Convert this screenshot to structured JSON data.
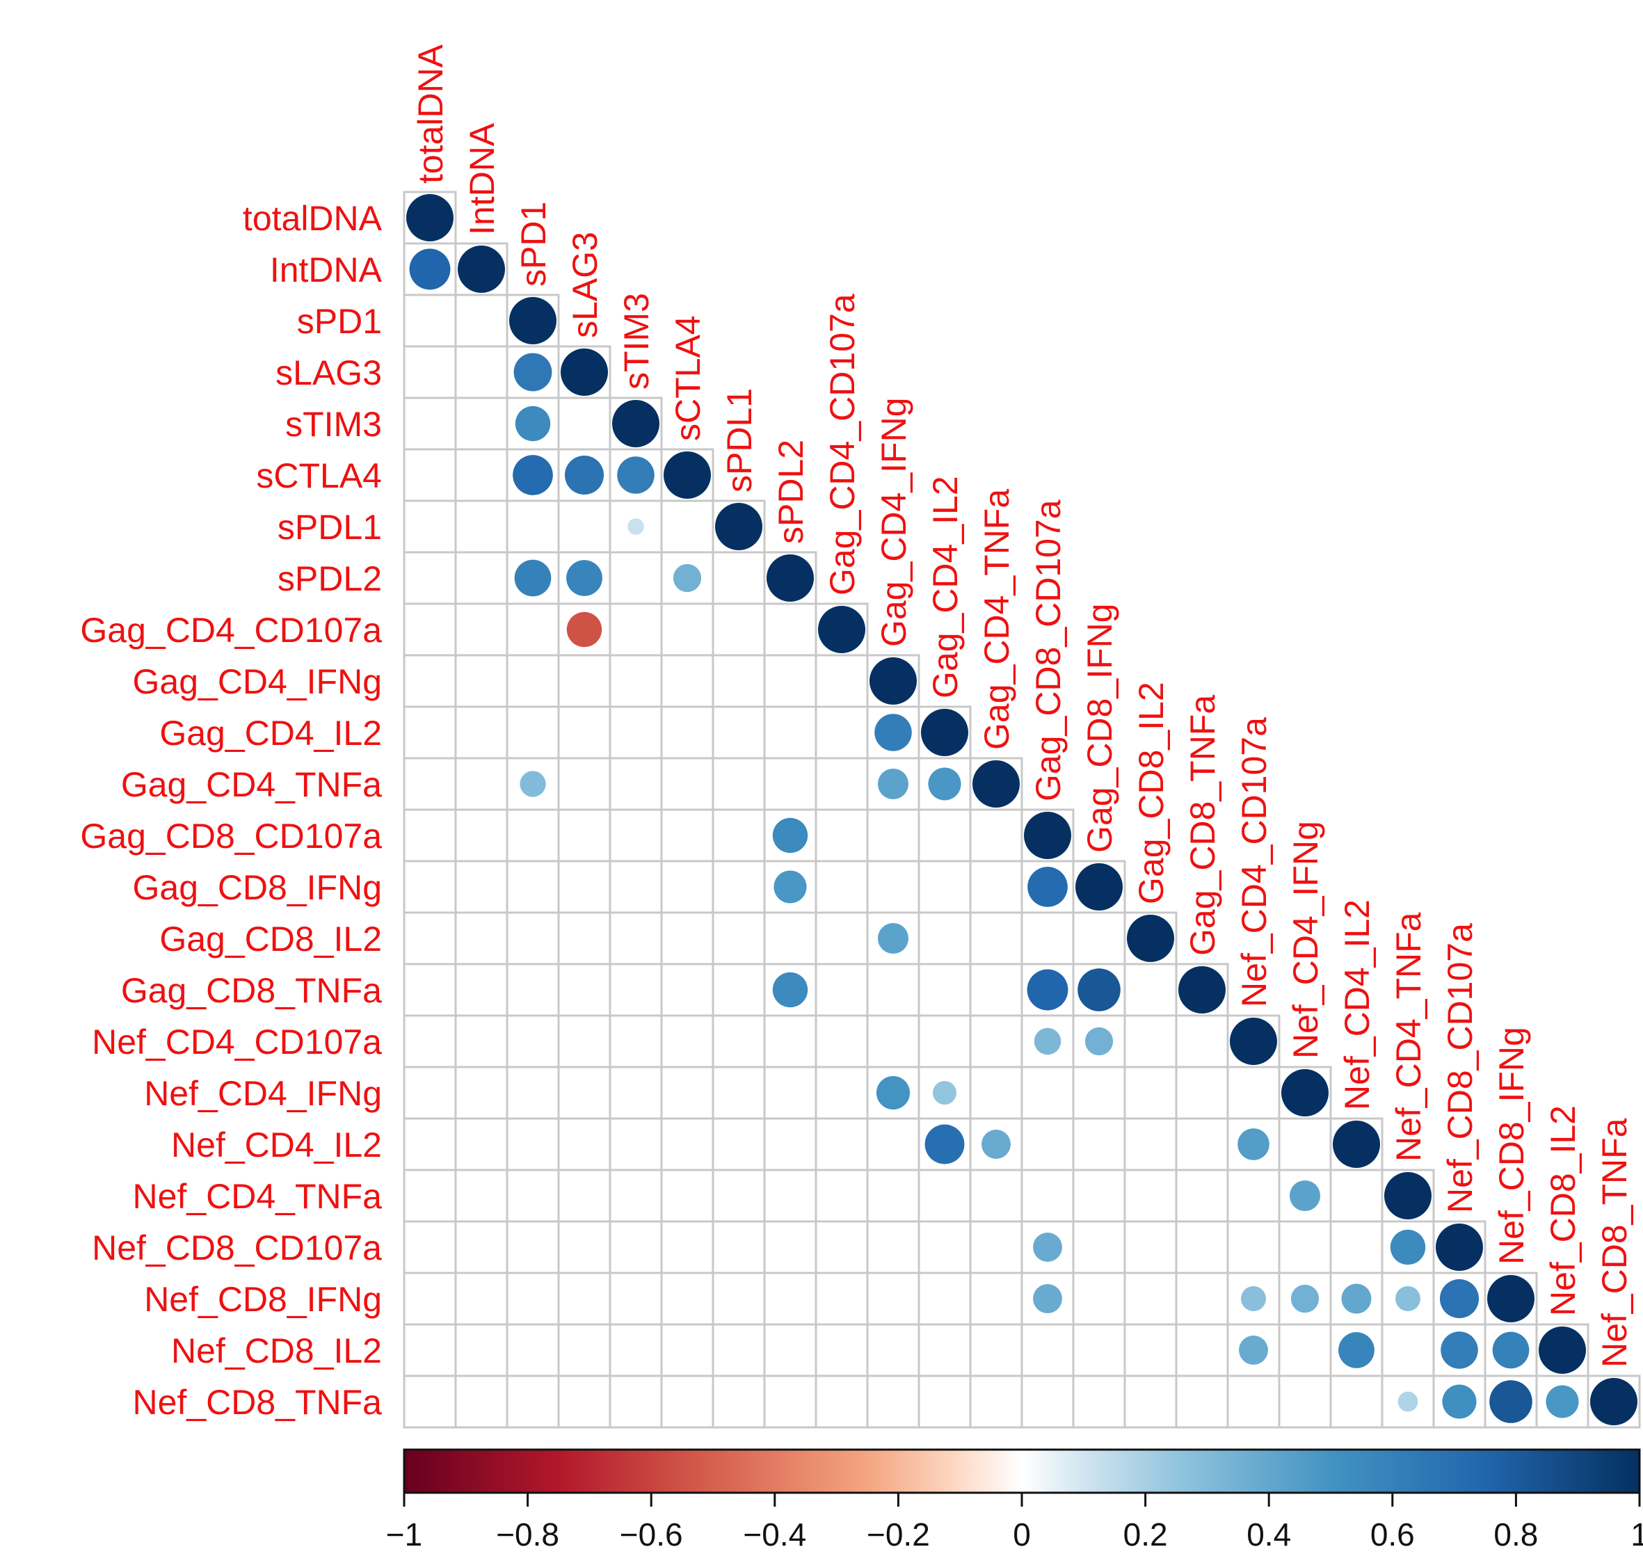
{
  "colors": {
    "label": "#ee1111",
    "grid": "#c8c8c8",
    "tick_text": "#111111"
  },
  "chart_data": {
    "type": "heatmap",
    "subtype": "correlation-matrix-lower-triangle-circles",
    "variables": [
      "totalDNA",
      "IntDNA",
      "sPD1",
      "sLAG3",
      "sTIM3",
      "sCTLA4",
      "sPDL1",
      "sPDL2",
      "Gag_CD4_CD107a",
      "Gag_CD4_IFNg",
      "Gag_CD4_IL2",
      "Gag_CD4_TNFa",
      "Gag_CD8_CD107a",
      "Gag_CD8_IFNg",
      "Gag_CD8_IL2",
      "Gag_CD8_TNFa",
      "Nef_CD4_CD107a",
      "Nef_CD4_IFNg",
      "Nef_CD4_IL2",
      "Nef_CD4_TNFa",
      "Nef_CD8_CD107a",
      "Nef_CD8_IFNg",
      "Nef_CD8_IL2",
      "Nef_CD8_TNFa"
    ],
    "correlations": [
      {
        "row": 1,
        "col": 0,
        "r": 0.75
      },
      {
        "row": 3,
        "col": 2,
        "r": 0.65
      },
      {
        "row": 4,
        "col": 2,
        "r": 0.55
      },
      {
        "row": 5,
        "col": 2,
        "r": 0.72
      },
      {
        "row": 5,
        "col": 3,
        "r": 0.68
      },
      {
        "row": 5,
        "col": 4,
        "r": 0.62
      },
      {
        "row": 6,
        "col": 4,
        "r": 0.12
      },
      {
        "row": 7,
        "col": 2,
        "r": 0.6
      },
      {
        "row": 7,
        "col": 3,
        "r": 0.58
      },
      {
        "row": 7,
        "col": 5,
        "r": 0.35
      },
      {
        "row": 8,
        "col": 3,
        "r": -0.55
      },
      {
        "row": 10,
        "col": 9,
        "r": 0.62
      },
      {
        "row": 11,
        "col": 2,
        "r": 0.3
      },
      {
        "row": 11,
        "col": 9,
        "r": 0.42
      },
      {
        "row": 11,
        "col": 10,
        "r": 0.48
      },
      {
        "row": 12,
        "col": 7,
        "r": 0.55
      },
      {
        "row": 13,
        "col": 7,
        "r": 0.48
      },
      {
        "row": 13,
        "col": 12,
        "r": 0.72
      },
      {
        "row": 14,
        "col": 9,
        "r": 0.42
      },
      {
        "row": 15,
        "col": 7,
        "r": 0.55
      },
      {
        "row": 15,
        "col": 12,
        "r": 0.75
      },
      {
        "row": 15,
        "col": 13,
        "r": 0.82
      },
      {
        "row": 16,
        "col": 12,
        "r": 0.32
      },
      {
        "row": 16,
        "col": 13,
        "r": 0.35
      },
      {
        "row": 17,
        "col": 9,
        "r": 0.5
      },
      {
        "row": 17,
        "col": 10,
        "r": 0.25
      },
      {
        "row": 18,
        "col": 10,
        "r": 0.7
      },
      {
        "row": 18,
        "col": 11,
        "r": 0.38
      },
      {
        "row": 18,
        "col": 16,
        "r": 0.45
      },
      {
        "row": 19,
        "col": 17,
        "r": 0.42
      },
      {
        "row": 20,
        "col": 12,
        "r": 0.38
      },
      {
        "row": 20,
        "col": 19,
        "r": 0.55
      },
      {
        "row": 21,
        "col": 12,
        "r": 0.38
      },
      {
        "row": 21,
        "col": 16,
        "r": 0.28
      },
      {
        "row": 21,
        "col": 17,
        "r": 0.35
      },
      {
        "row": 21,
        "col": 18,
        "r": 0.4
      },
      {
        "row": 21,
        "col": 19,
        "r": 0.28
      },
      {
        "row": 21,
        "col": 20,
        "r": 0.68
      },
      {
        "row": 22,
        "col": 16,
        "r": 0.38
      },
      {
        "row": 22,
        "col": 18,
        "r": 0.58
      },
      {
        "row": 22,
        "col": 20,
        "r": 0.62
      },
      {
        "row": 22,
        "col": 21,
        "r": 0.6
      },
      {
        "row": 23,
        "col": 19,
        "r": 0.18
      },
      {
        "row": 23,
        "col": 20,
        "r": 0.52
      },
      {
        "row": 23,
        "col": 21,
        "r": 0.82
      },
      {
        "row": 23,
        "col": 22,
        "r": 0.48
      }
    ],
    "diagonal_value": 1,
    "colorbar": {
      "range": [
        -1,
        1
      ],
      "tick_values": [
        -1,
        -0.8,
        -0.6,
        -0.4,
        -0.2,
        0,
        0.2,
        0.4,
        0.6,
        0.8,
        1
      ],
      "tick_labels": [
        "−1",
        "−0.8",
        "−0.6",
        "−0.4",
        "−0.2",
        "0",
        "0.2",
        "0.4",
        "0.6",
        "0.8",
        "1"
      ],
      "stops": [
        {
          "value": -1,
          "color": "#67001f"
        },
        {
          "value": -0.75,
          "color": "#b2182b"
        },
        {
          "value": -0.5,
          "color": "#d6604d"
        },
        {
          "value": -0.25,
          "color": "#f4a582"
        },
        {
          "value": -0.1,
          "color": "#fddbc7"
        },
        {
          "value": 0,
          "color": "#ffffff"
        },
        {
          "value": 0.1,
          "color": "#d1e5f0"
        },
        {
          "value": 0.25,
          "color": "#92c5de"
        },
        {
          "value": 0.5,
          "color": "#4393c3"
        },
        {
          "value": 0.75,
          "color": "#2166ac"
        },
        {
          "value": 1,
          "color": "#053061"
        }
      ]
    }
  }
}
